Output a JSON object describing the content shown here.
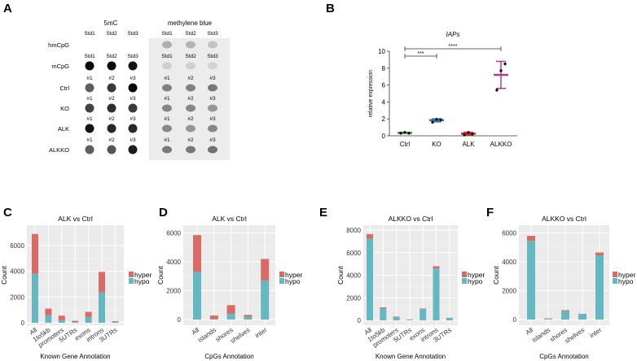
{
  "panel_labels": [
    "A",
    "B",
    "C",
    "D",
    "E",
    "F"
  ],
  "panel_a": {
    "left_title": "5mC",
    "right_title": "methylene blue",
    "rows": [
      {
        "label": "hmCpG",
        "samples": [
          "Std1",
          "Std2",
          "Std3"
        ],
        "left_intensity": [
          0,
          0,
          0
        ],
        "right_intensity": [
          0.35,
          0.3,
          0.2
        ]
      },
      {
        "label": "mCpG",
        "samples": [
          "Std1",
          "Std2",
          "Std3"
        ],
        "left_intensity": [
          1,
          1,
          0.95
        ],
        "right_intensity": [
          0.12,
          0.12,
          0.1
        ]
      },
      {
        "label": "Ctrl",
        "samples": [
          "#1",
          "#2",
          "#3"
        ],
        "left_intensity": [
          0.55,
          0.75,
          1
        ],
        "right_intensity": [
          0.65,
          0.65,
          0.7
        ]
      },
      {
        "label": "KO",
        "samples": [
          "#1",
          "#2",
          "#3"
        ],
        "left_intensity": [
          0.7,
          0.8,
          0.75
        ],
        "right_intensity": [
          0.6,
          0.6,
          0.5
        ]
      },
      {
        "label": "ALK",
        "samples": [
          "#1",
          "#2",
          "#3"
        ],
        "left_intensity": [
          0.95,
          0.85,
          0.85
        ],
        "right_intensity": [
          0.6,
          0.5,
          0.6
        ]
      },
      {
        "label": "ALKKO",
        "samples": [
          "#1",
          "#2",
          "#3"
        ],
        "left_intensity": [
          0.55,
          0.6,
          0.9
        ],
        "right_intensity": [
          0.7,
          0.7,
          0.75
        ]
      }
    ]
  },
  "chart_data": [
    {
      "panel": "B",
      "type": "scatter",
      "title": "IAPs",
      "xlabel": "",
      "ylabel": "relative expression",
      "ylim": [
        0,
        10
      ],
      "yticks": [
        0,
        2,
        4,
        6,
        8,
        10
      ],
      "categories": [
        "Ctrl",
        "KO",
        "ALK",
        "ALKKO"
      ],
      "colors": [
        "#3a9a3a",
        "#2f6fc4",
        "#d42424",
        "#a0449a"
      ],
      "points": [
        [
          0.3,
          0.4,
          0.3
        ],
        [
          1.6,
          1.95,
          1.9
        ],
        [
          0.1,
          0.4,
          0.2
        ],
        [
          5.4,
          7.7,
          8.5
        ]
      ],
      "mean": [
        0.35,
        1.85,
        0.25,
        7.2
      ],
      "error": [
        [
          0.3,
          0.4
        ],
        [
          1.65,
          2.0
        ],
        [
          0.1,
          0.4
        ],
        [
          5.6,
          8.8
        ]
      ],
      "significance": [
        {
          "from": "Ctrl",
          "to": "KO",
          "label": "***"
        },
        {
          "from": "Ctrl",
          "to": "ALKKO",
          "label": "****"
        }
      ]
    },
    {
      "panel": "C",
      "type": "bar",
      "stacked": true,
      "title": "ALK vs Ctrl",
      "xlabel": "Known Gene Annotation",
      "ylabel": "Count",
      "ylim": [
        0,
        7200
      ],
      "yticks": [
        0,
        2000,
        4000,
        6000
      ],
      "categories": [
        "All",
        "1to5kb",
        "promoters",
        "5UTRs",
        "exons",
        "introns",
        "3UTRs"
      ],
      "series": [
        {
          "name": "hypo",
          "color": "#65b8c1",
          "values": [
            3800,
            600,
            200,
            50,
            450,
            2350,
            80
          ]
        },
        {
          "name": "hyper",
          "color": "#d96b67",
          "values": [
            3100,
            500,
            350,
            100,
            400,
            1600,
            50
          ]
        }
      ],
      "legend": [
        "hyper",
        "hypo"
      ],
      "legend_position": "right"
    },
    {
      "panel": "D",
      "type": "bar",
      "stacked": true,
      "title": "ALK vs Ctrl",
      "xlabel": "CpGs Annotation",
      "ylabel": "Count",
      "ylim": [
        0,
        6200
      ],
      "yticks": [
        0,
        2000,
        4000,
        6000
      ],
      "categories": [
        "All",
        "islands",
        "shores",
        "shelves",
        "inter"
      ],
      "series": [
        {
          "name": "hypo",
          "color": "#65b8c1",
          "values": [
            3300,
            30,
            400,
            200,
            2700
          ]
        },
        {
          "name": "hyper",
          "color": "#d96b67",
          "values": [
            2550,
            250,
            600,
            120,
            1500
          ]
        }
      ],
      "legend": [
        "hyper",
        "hypo"
      ],
      "legend_position": "right"
    },
    {
      "panel": "E",
      "type": "bar",
      "stacked": true,
      "title": "ALKKO vs Ctrl",
      "xlabel": "Known Gene Annotation",
      "ylabel": "Count",
      "ylim": [
        0,
        8000
      ],
      "yticks": [
        0,
        2000,
        4000,
        6000,
        8000
      ],
      "categories": [
        "All",
        "1to5kb",
        "promoters",
        "5UTRs",
        "exons",
        "introns",
        "3UTRs"
      ],
      "series": [
        {
          "name": "hypo",
          "color": "#65b8c1",
          "values": [
            7250,
            1050,
            280,
            60,
            1000,
            4600,
            220
          ]
        },
        {
          "name": "hyper",
          "color": "#d96b67",
          "values": [
            400,
            100,
            50,
            20,
            50,
            200,
            10
          ]
        }
      ],
      "legend": [
        "hyper",
        "hypo"
      ],
      "legend_position": "right"
    },
    {
      "panel": "F",
      "type": "bar",
      "stacked": true,
      "title": "ALKKO vs Ctrl",
      "xlabel": "CpGs Annotation",
      "ylabel": "Count",
      "ylim": [
        0,
        6200
      ],
      "yticks": [
        0,
        2000,
        4000,
        6000
      ],
      "categories": [
        "All",
        "islands",
        "shores",
        "shelves",
        "inter"
      ],
      "series": [
        {
          "name": "hypo",
          "color": "#65b8c1",
          "values": [
            5450,
            50,
            580,
            380,
            4450
          ]
        },
        {
          "name": "hyper",
          "color": "#d96b67",
          "values": [
            350,
            30,
            70,
            20,
            200
          ]
        }
      ],
      "legend": [
        "hyper",
        "hypo"
      ],
      "legend_position": "right"
    }
  ]
}
